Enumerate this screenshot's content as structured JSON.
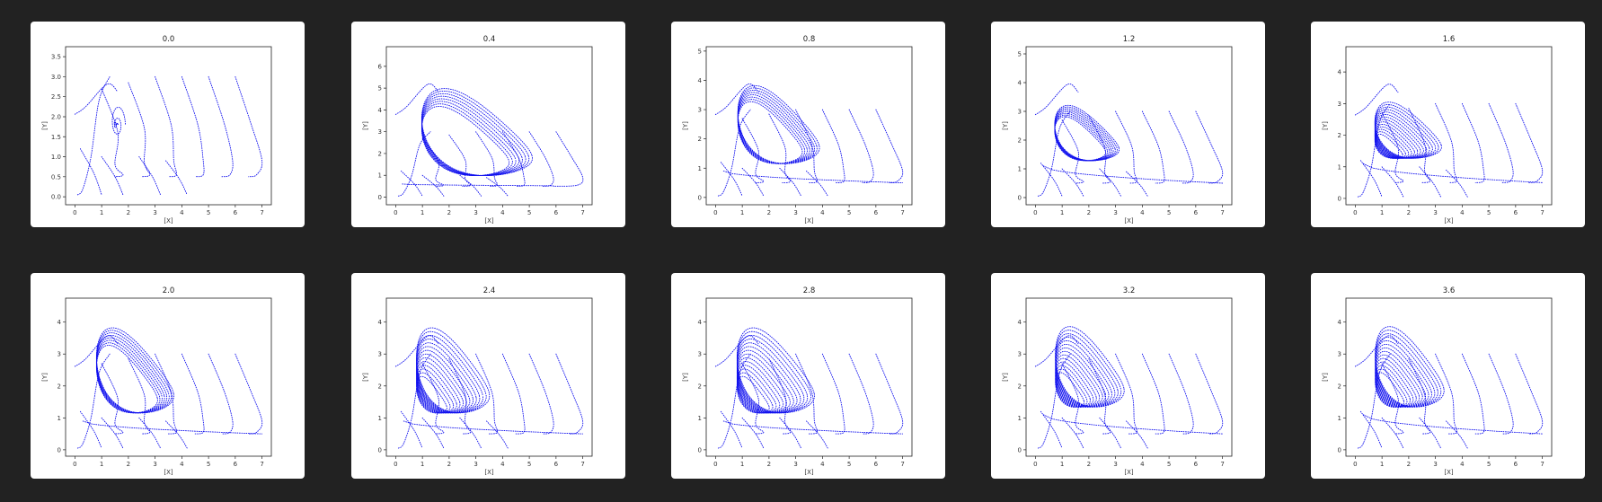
{
  "chart_data": [
    {
      "type": "line",
      "title": "0.0",
      "xlabel": "[X]",
      "ylabel": "[Y]",
      "xlim": [
        -0.35,
        7.35
      ],
      "ylim": [
        -0.2,
        3.75
      ],
      "xticks": [
        0,
        1,
        2,
        3,
        4,
        5,
        6,
        7
      ],
      "yticks": [
        0.0,
        0.5,
        1.0,
        1.5,
        2.0,
        2.5,
        3.0,
        3.5
      ],
      "ytick_labels": [
        "0.0",
        "0.5",
        "1.0",
        "1.5",
        "2.0",
        "2.5",
        "3.0",
        "3.5"
      ],
      "attractor": {
        "kind": "spiral",
        "center": [
          1.55,
          1.85
        ],
        "extent": [
          0.2,
          0.35
        ],
        "amplitude": 4.8,
        "window": 1.35
      }
    },
    {
      "type": "line",
      "title": "0.4",
      "xlabel": "[X]",
      "ylabel": "[Y]",
      "xlim": [
        -0.35,
        7.35
      ],
      "ylim": [
        -0.35,
        6.9
      ],
      "xticks": [
        0,
        1,
        2,
        3,
        4,
        5,
        6,
        7
      ],
      "yticks": [
        0,
        1,
        2,
        3,
        4,
        5,
        6
      ],
      "ytick_labels": [
        "0",
        "1",
        "2",
        "3",
        "4",
        "5",
        "6"
      ],
      "attractor": {
        "kind": "cycle",
        "min": [
          0.25,
          0.6
        ],
        "max": [
          5.4,
          6.0
        ],
        "tail": [
          5.9,
          0.52
        ]
      }
    },
    {
      "type": "line",
      "title": "0.8",
      "xlabel": "[X]",
      "ylabel": "[Y]",
      "xlim": [
        -0.35,
        7.35
      ],
      "ylim": [
        -0.25,
        5.15
      ],
      "xticks": [
        0,
        1,
        2,
        3,
        4,
        5,
        6,
        7
      ],
      "yticks": [
        0,
        1,
        2,
        3,
        4,
        5
      ],
      "ytick_labels": [
        "0",
        "1",
        "2",
        "3",
        "4",
        "5"
      ],
      "attractor": {
        "kind": "cycle",
        "min": [
          0.3,
          0.9
        ],
        "max": [
          4.1,
          4.5
        ],
        "tail": [
          7.0,
          0.5
        ]
      }
    },
    {
      "type": "line",
      "title": "1.2",
      "xlabel": "[X]",
      "ylabel": "[Y]",
      "xlim": [
        -0.35,
        7.35
      ],
      "ylim": [
        -0.25,
        5.25
      ],
      "xticks": [
        0,
        1,
        2,
        3,
        4,
        5,
        6,
        7
      ],
      "yticks": [
        0,
        1,
        2,
        3,
        4,
        5
      ],
      "ytick_labels": [
        "0",
        "1",
        "2",
        "3",
        "4",
        "5"
      ],
      "attractor": {
        "kind": "cycle",
        "min": [
          0.3,
          1.1
        ],
        "max": [
          3.3,
          3.7
        ],
        "tail": [
          7.0,
          0.5
        ]
      }
    },
    {
      "type": "line",
      "title": "1.6",
      "xlabel": "[X]",
      "ylabel": "[Y]",
      "xlim": [
        -0.35,
        7.35
      ],
      "ylim": [
        -0.2,
        4.8
      ],
      "xticks": [
        0,
        1,
        2,
        3,
        4,
        5,
        6,
        7
      ],
      "yticks": [
        0,
        1,
        2,
        3,
        4
      ],
      "ytick_labels": [
        "0",
        "1",
        "2",
        "3",
        "4"
      ],
      "attractor": {
        "kind": "chaos",
        "min": [
          0.3,
          1.1
        ],
        "max": [
          3.4,
          3.5
        ],
        "tail": [
          7.0,
          0.5
        ]
      }
    },
    {
      "type": "line",
      "title": "2.0",
      "xlabel": "[X]",
      "ylabel": "[Y]",
      "xlim": [
        -0.35,
        7.35
      ],
      "ylim": [
        -0.2,
        4.75
      ],
      "xticks": [
        0,
        1,
        2,
        3,
        4,
        5,
        6,
        7
      ],
      "yticks": [
        0,
        1,
        2,
        3,
        4
      ],
      "ytick_labels": [
        "0",
        "1",
        "2",
        "3",
        "4"
      ],
      "attractor": {
        "kind": "cycle",
        "min": [
          0.3,
          0.9
        ],
        "max": [
          3.9,
          4.5
        ],
        "tail": [
          7.0,
          0.5
        ]
      }
    },
    {
      "type": "line",
      "title": "2.4",
      "xlabel": "[X]",
      "ylabel": "[Y]",
      "xlim": [
        -0.35,
        7.35
      ],
      "ylim": [
        -0.2,
        4.75
      ],
      "xticks": [
        0,
        1,
        2,
        3,
        4,
        5,
        6,
        7
      ],
      "yticks": [
        0,
        1,
        2,
        3,
        4
      ],
      "ytick_labels": [
        "0",
        "1",
        "2",
        "3",
        "4"
      ],
      "attractor": {
        "kind": "chaos",
        "min": [
          0.3,
          0.9
        ],
        "max": [
          3.7,
          4.5
        ],
        "tail": [
          7.0,
          0.5
        ]
      }
    },
    {
      "type": "line",
      "title": "2.8",
      "xlabel": "[X]",
      "ylabel": "[Y]",
      "xlim": [
        -0.35,
        7.35
      ],
      "ylim": [
        -0.2,
        4.75
      ],
      "xticks": [
        0,
        1,
        2,
        3,
        4,
        5,
        6,
        7
      ],
      "yticks": [
        0,
        1,
        2,
        3,
        4
      ],
      "ytick_labels": [
        "0",
        "1",
        "2",
        "3",
        "4"
      ],
      "attractor": {
        "kind": "chaos",
        "min": [
          0.3,
          0.9
        ],
        "max": [
          3.9,
          4.5
        ],
        "tail": [
          7.0,
          0.5
        ]
      }
    },
    {
      "type": "line",
      "title": "3.2",
      "xlabel": "[X]",
      "ylabel": "[Y]",
      "xlim": [
        -0.35,
        7.35
      ],
      "ylim": [
        -0.2,
        4.75
      ],
      "xticks": [
        0,
        1,
        2,
        3,
        4,
        5,
        6,
        7
      ],
      "yticks": [
        0,
        1,
        2,
        3,
        4
      ],
      "ytick_labels": [
        "0",
        "1",
        "2",
        "3",
        "4"
      ],
      "attractor": {
        "kind": "chaos",
        "min": [
          0.3,
          1.1
        ],
        "max": [
          3.5,
          4.5
        ],
        "tail": [
          7.0,
          0.5
        ]
      }
    },
    {
      "type": "line",
      "title": "3.6",
      "xlabel": "[X]",
      "ylabel": "[Y]",
      "xlim": [
        -0.35,
        7.35
      ],
      "ylim": [
        -0.2,
        4.75
      ],
      "xticks": [
        0,
        1,
        2,
        3,
        4,
        5,
        6,
        7
      ],
      "yticks": [
        0,
        1,
        2,
        3,
        4
      ],
      "ytick_labels": [
        "0",
        "1",
        "2",
        "3",
        "4"
      ],
      "attractor": {
        "kind": "chaos",
        "min": [
          0.3,
          1.1
        ],
        "max": [
          3.5,
          4.5
        ],
        "tail": [
          7.0,
          0.5
        ]
      }
    }
  ],
  "colors": {
    "trajectory": "#1010ee",
    "background": "#222222",
    "panel": "#ffffff"
  }
}
